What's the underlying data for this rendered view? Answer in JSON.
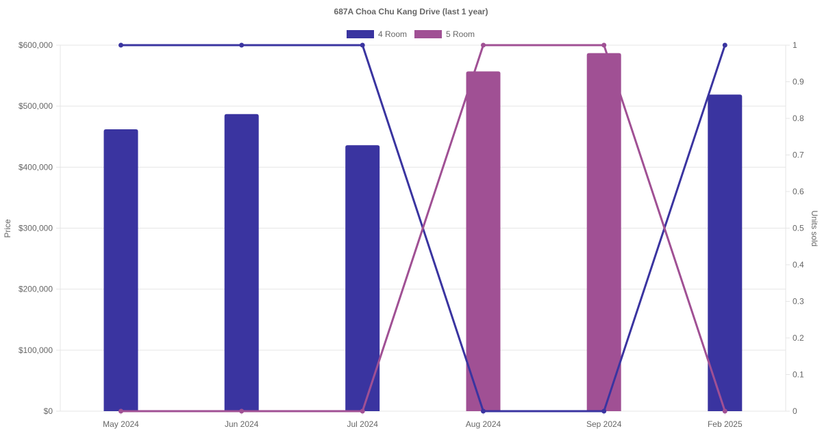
{
  "chart_data": {
    "type": "bar",
    "title": "687A Choa Chu Kang Drive (last 1 year)",
    "categories": [
      "May 2024",
      "Jun 2024",
      "Jul 2024",
      "Aug 2024",
      "Sep 2024",
      "Feb 2025"
    ],
    "ylabel": "Price",
    "y2label": "Units sold",
    "ylim": [
      0,
      600000
    ],
    "y2lim": [
      0,
      1
    ],
    "yticks": [
      "$0",
      "$100,000",
      "$200,000",
      "$300,000",
      "$400,000",
      "$500,000",
      "$600,000"
    ],
    "y2ticks": [
      "0",
      "0.1",
      "0.2",
      "0.3",
      "0.4",
      "0.5",
      "0.6",
      "0.7",
      "0.8",
      "0.9",
      "1"
    ],
    "legend_position": "top",
    "grid": true,
    "series": [
      {
        "name": "4 Room",
        "color": "#3a34a0",
        "price": [
          462000,
          487000,
          436000,
          null,
          null,
          519000
        ],
        "units": [
          1,
          1,
          1,
          0,
          0,
          1
        ]
      },
      {
        "name": "5 Room",
        "color": "#a05094",
        "price": [
          null,
          null,
          null,
          557000,
          587000,
          null
        ],
        "units": [
          0,
          0,
          0,
          1,
          1,
          0
        ]
      }
    ]
  }
}
